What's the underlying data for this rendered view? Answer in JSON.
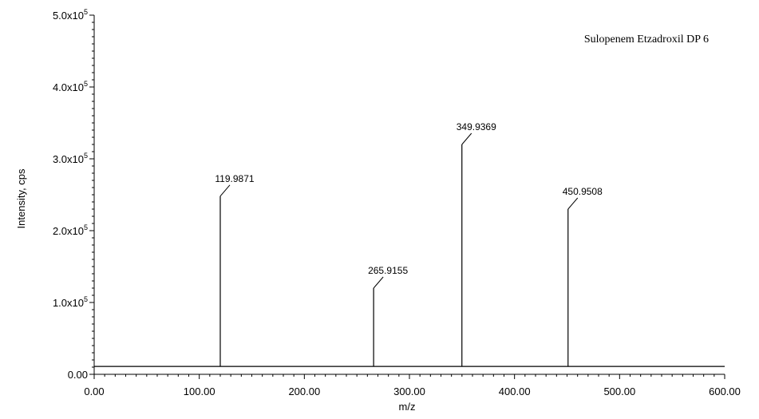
{
  "chart_data": {
    "type": "bar",
    "title": "Sulopenem Etzadroxil DP 6",
    "xlabel": "m/z",
    "ylabel": "Intensity, cps",
    "xlim": [
      0,
      600
    ],
    "ylim": [
      0,
      500000
    ],
    "x_ticks": [
      {
        "value": 0,
        "label": "0.00"
      },
      {
        "value": 100,
        "label": "100.00"
      },
      {
        "value": 200,
        "label": "200.00"
      },
      {
        "value": 300,
        "label": "300.00"
      },
      {
        "value": 400,
        "label": "400.00"
      },
      {
        "value": 500,
        "label": "500.00"
      },
      {
        "value": 600,
        "label": "600.00"
      }
    ],
    "y_ticks": [
      {
        "value": 0,
        "mantissa": "0.00",
        "exp": ""
      },
      {
        "value": 100000,
        "mantissa": "1.0x10",
        "exp": "5"
      },
      {
        "value": 200000,
        "mantissa": "2.0x10",
        "exp": "5"
      },
      {
        "value": 300000,
        "mantissa": "3.0x10",
        "exp": "5"
      },
      {
        "value": 400000,
        "mantissa": "4.0x10",
        "exp": "5"
      },
      {
        "value": 500000,
        "mantissa": "5.0x10",
        "exp": "5"
      }
    ],
    "baseline": 11000,
    "peaks": [
      {
        "x": 119.9871,
        "y": 248000,
        "label": "119.9871"
      },
      {
        "x": 265.9155,
        "y": 120000,
        "label": "265.9155"
      },
      {
        "x": 349.9369,
        "y": 320000,
        "label": "349.9369"
      },
      {
        "x": 450.9508,
        "y": 230000,
        "label": "450.9508"
      }
    ],
    "grid": false,
    "line_color": "#000000"
  }
}
